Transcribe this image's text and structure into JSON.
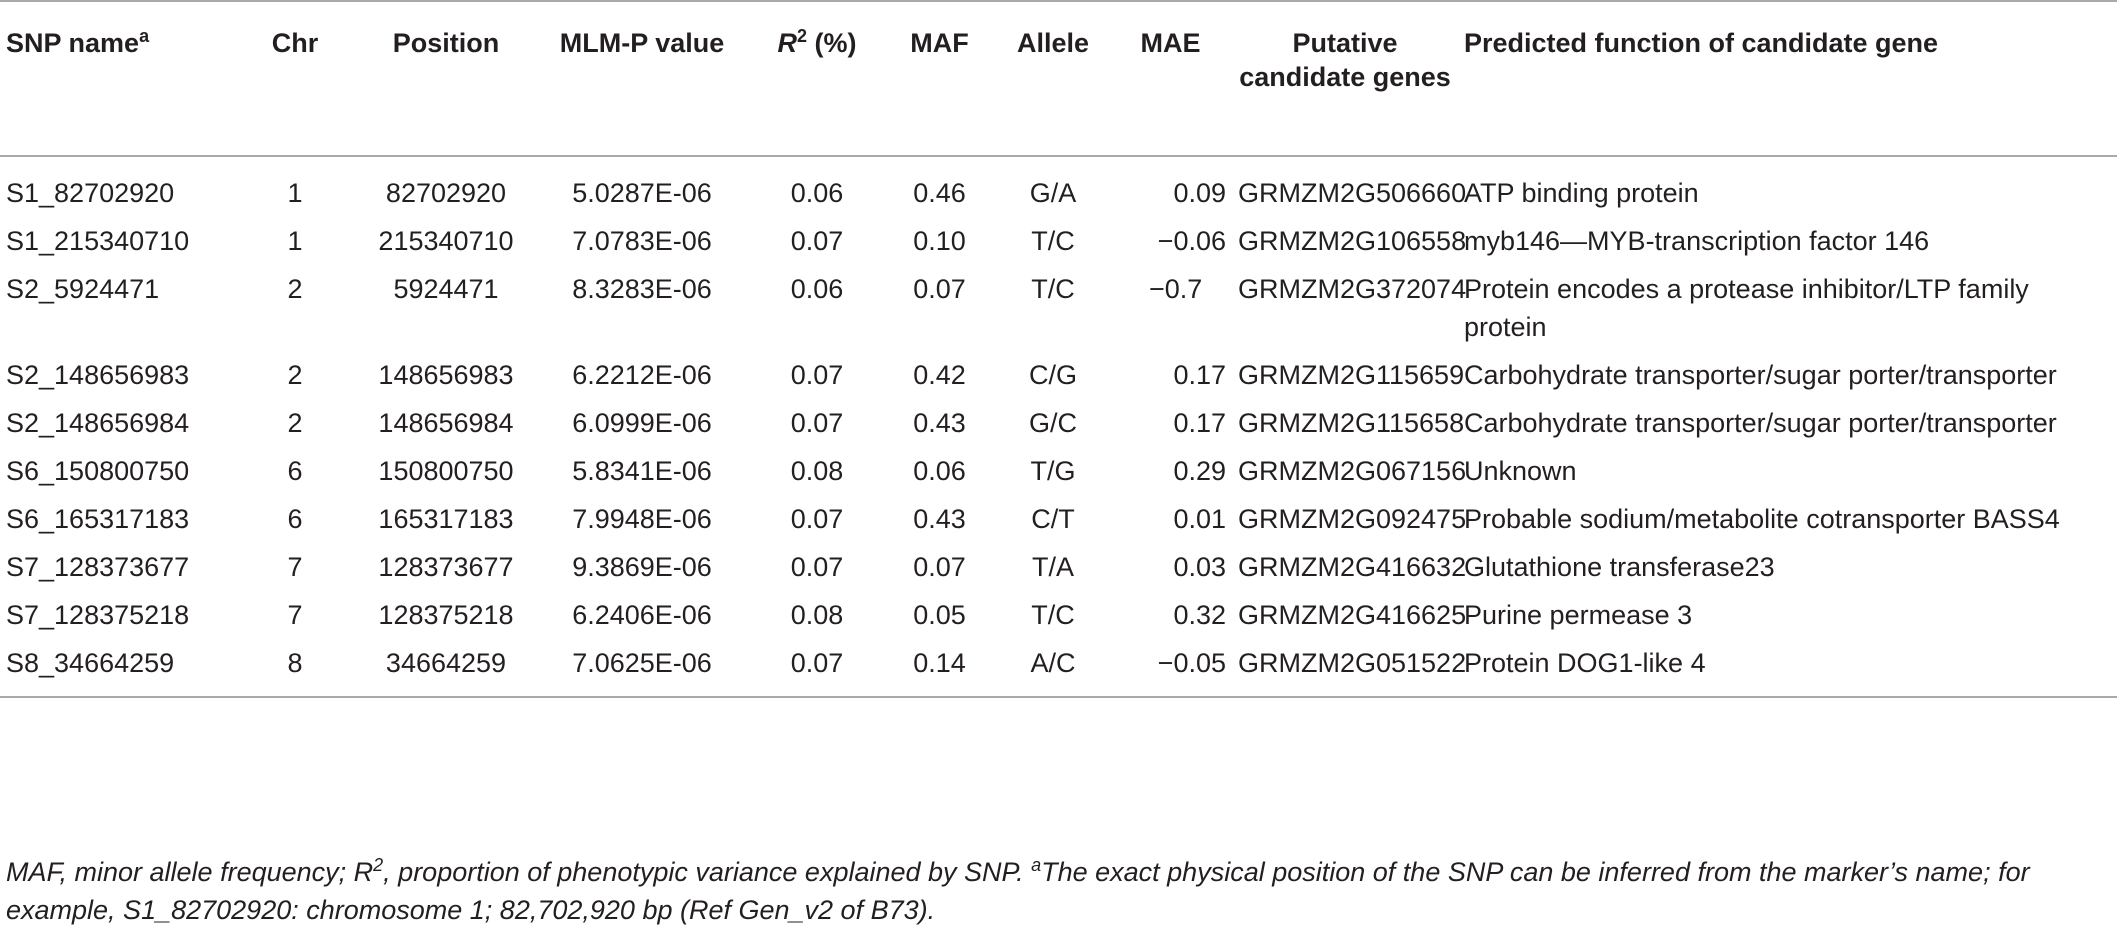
{
  "headers": {
    "snp": "SNP name",
    "snp_sup": "a",
    "chr": "Chr",
    "position": "Position",
    "mlmp": "MLM-P value",
    "r2_letter": "R",
    "r2_sup": "2",
    "r2_unit": " (%)",
    "maf": "MAF",
    "allele": "Allele",
    "mae": "MAE",
    "genes": "Putative candidate genes",
    "function": "Predicted function of candidate gene"
  },
  "rows": [
    {
      "snp": "S1_82702920",
      "chr": "1",
      "position": "82702920",
      "mlmp": "5.0287E-06",
      "r2": "0.06",
      "maf": "0.46",
      "allele": "G/A",
      "mae": "0.09",
      "gene": "GRMZM2G506660",
      "function": "ATP binding protein"
    },
    {
      "snp": "S1_215340710",
      "chr": "1",
      "position": "215340710",
      "mlmp": "7.0783E-06",
      "r2": "0.07",
      "maf": "0.10",
      "allele": "T/C",
      "mae": "−0.06",
      "gene": "GRMZM2G106558",
      "function": "myb146—MYB-transcription factor 146"
    },
    {
      "snp": "S2_5924471",
      "chr": "2",
      "position": "5924471",
      "mlmp": "8.3283E-06",
      "r2": "0.06",
      "maf": "0.07",
      "allele": "T/C",
      "mae": "−0.7",
      "gene": "GRMZM2G372074",
      "function": "Protein encodes a protease inhibitor/LTP family protein"
    },
    {
      "snp": "S2_148656983",
      "chr": "2",
      "position": "148656983",
      "mlmp": "6.2212E-06",
      "r2": "0.07",
      "maf": "0.42",
      "allele": "C/G",
      "mae": "0.17",
      "gene": "GRMZM2G115659",
      "function": "Carbohydrate transporter/sugar porter/transporter"
    },
    {
      "snp": "S2_148656984",
      "chr": "2",
      "position": "148656984",
      "mlmp": "6.0999E-06",
      "r2": "0.07",
      "maf": "0.43",
      "allele": "G/C",
      "mae": "0.17",
      "gene": "GRMZM2G115658",
      "function": "Carbohydrate transporter/sugar porter/transporter"
    },
    {
      "snp": "S6_150800750",
      "chr": "6",
      "position": "150800750",
      "mlmp": "5.8341E-06",
      "r2": "0.08",
      "maf": "0.06",
      "allele": "T/G",
      "mae": "0.29",
      "gene": "GRMZM2G067156",
      "function": "Unknown"
    },
    {
      "snp": "S6_165317183",
      "chr": "6",
      "position": "165317183",
      "mlmp": "7.9948E-06",
      "r2": "0.07",
      "maf": "0.43",
      "allele": "C/T",
      "mae": "0.01",
      "gene": "GRMZM2G092475",
      "function": "Probable sodium/metabolite cotransporter BASS4"
    },
    {
      "snp": "S7_128373677",
      "chr": "7",
      "position": "128373677",
      "mlmp": "9.3869E-06",
      "r2": "0.07",
      "maf": "0.07",
      "allele": "T/A",
      "mae": "0.03",
      "gene": "GRMZM2G416632",
      "function": "Glutathione transferase23"
    },
    {
      "snp": "S7_128375218",
      "chr": "7",
      "position": "128375218",
      "mlmp": "6.2406E-06",
      "r2": "0.08",
      "maf": "0.05",
      "allele": "T/C",
      "mae": "0.32",
      "gene": "GRMZM2G416625",
      "function": "Purine permease 3"
    },
    {
      "snp": "S8_34664259",
      "chr": "8",
      "position": "34664259",
      "mlmp": "7.0625E-06",
      "r2": "0.07",
      "maf": "0.14",
      "allele": "A/C",
      "mae": "−0.05",
      "gene": "GRMZM2G051522",
      "function": "Protein DOG1-like 4"
    }
  ],
  "footnote": {
    "part1": "MAF, minor allele frequency; ",
    "r_letter": "R",
    "r_sup": "2",
    "part2": ", proportion of phenotypic variance explained by SNP. ",
    "a_sup": "a",
    "part3": "The exact physical position of the SNP can be inferred from the marker’s name; for example, S1_82702920: chromosome 1; 82,702,920 bp (Ref Gen_v2 of B73)."
  }
}
